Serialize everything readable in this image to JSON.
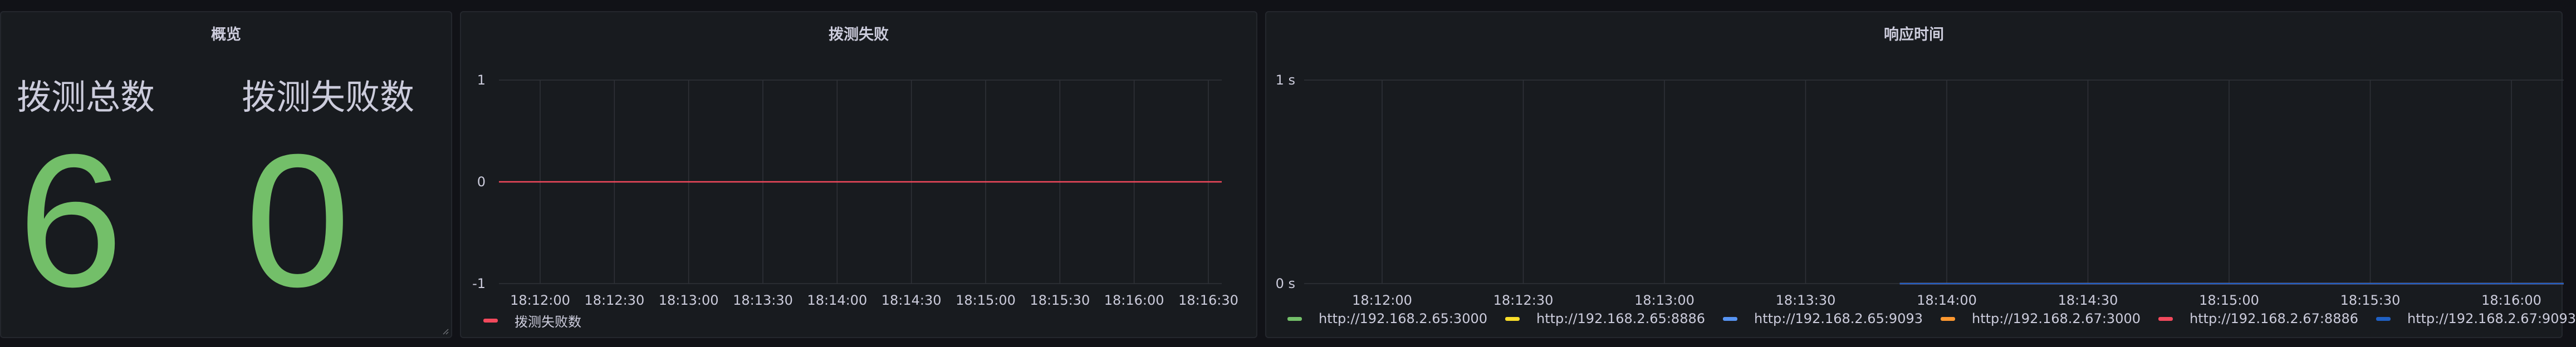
{
  "colors": {
    "background": "#111217",
    "panel": "#181b1f",
    "stat_green": "#73bf69",
    "series_red": "#f2495c",
    "grid": "#2f3238",
    "tick_text": "#ccccdc"
  },
  "overview": {
    "title": "概览",
    "stats": [
      {
        "label": "拨测总数",
        "value": "6"
      },
      {
        "label": "拨测失败数",
        "value": "0"
      }
    ]
  },
  "failures": {
    "title": "拨测失败",
    "legend": [
      {
        "name": "拨测失败数",
        "color": "#f2495c"
      }
    ]
  },
  "latency": {
    "title": "响应时间",
    "legend": [
      {
        "name": "http://192.168.2.65:3000",
        "color": "#73bf69"
      },
      {
        "name": "http://192.168.2.65:8886",
        "color": "#fade2a"
      },
      {
        "name": "http://192.168.2.65:9093",
        "color": "#5794f2"
      },
      {
        "name": "http://192.168.2.67:3000",
        "color": "#ff9830"
      },
      {
        "name": "http://192.168.2.67:8886",
        "color": "#f2495c"
      },
      {
        "name": "http://192.168.2.67:9093",
        "color": "#1f60c4"
      }
    ]
  },
  "chart_data": [
    {
      "type": "line",
      "title": "拨测失败",
      "x": [
        "18:12:00",
        "18:12:30",
        "18:13:00",
        "18:13:30",
        "18:14:00",
        "18:14:30",
        "18:15:00",
        "18:15:30",
        "18:16:00",
        "18:16:30"
      ],
      "ylim": [
        -1,
        1
      ],
      "yticks": [
        "1",
        "0",
        "-1"
      ],
      "series": [
        {
          "name": "拨测失败数",
          "color": "#f2495c",
          "values": [
            0,
            0,
            0,
            0,
            0,
            0,
            0,
            0,
            0,
            0
          ]
        }
      ],
      "grid": true,
      "legend_position": "bottom-left"
    },
    {
      "type": "line",
      "title": "响应时间",
      "x": [
        "18:12:00",
        "18:12:30",
        "18:13:00",
        "18:13:30",
        "18:14:00",
        "18:14:30",
        "18:15:00",
        "18:15:30",
        "18:16:00"
      ],
      "ylim": [
        0,
        1
      ],
      "yticks": [
        "1 s",
        "0 s"
      ],
      "series_start": "18:13:50",
      "series": [
        {
          "name": "http://192.168.2.65:3000",
          "color": "#73bf69",
          "values": [
            0,
            0,
            0,
            0,
            0,
            0,
            0,
            0,
            0
          ]
        },
        {
          "name": "http://192.168.2.65:8886",
          "color": "#fade2a",
          "values": [
            0,
            0,
            0,
            0,
            0,
            0,
            0,
            0,
            0
          ]
        },
        {
          "name": "http://192.168.2.65:9093",
          "color": "#5794f2",
          "values": [
            0,
            0,
            0,
            0,
            0,
            0,
            0,
            0,
            0
          ]
        },
        {
          "name": "http://192.168.2.67:3000",
          "color": "#ff9830",
          "values": [
            0,
            0,
            0,
            0,
            0,
            0,
            0,
            0,
            0
          ]
        },
        {
          "name": "http://192.168.2.67:8886",
          "color": "#f2495c",
          "values": [
            0,
            0,
            0,
            0,
            0,
            0,
            0,
            0,
            0
          ]
        },
        {
          "name": "http://192.168.2.67:9093",
          "color": "#1f60c4",
          "values": [
            0,
            0,
            0,
            0,
            0,
            0,
            0,
            0,
            0
          ]
        }
      ],
      "grid": true,
      "legend_position": "bottom-left"
    }
  ]
}
